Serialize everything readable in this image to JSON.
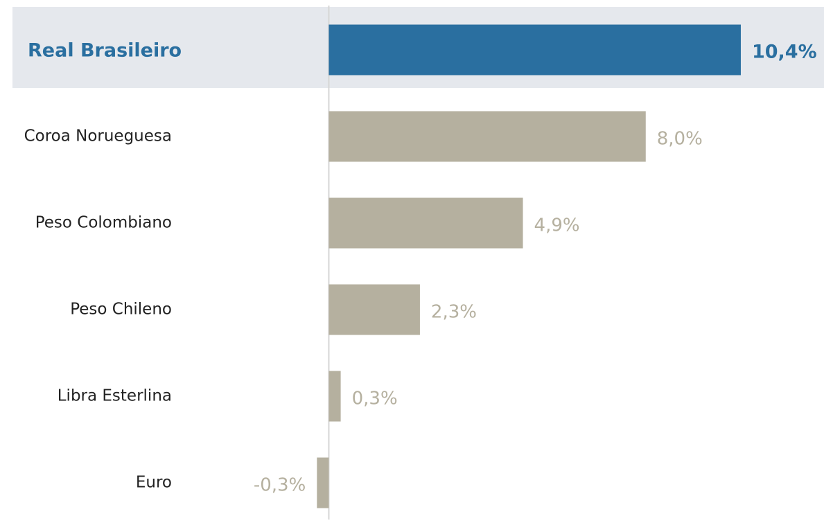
{
  "chart_data": {
    "type": "bar",
    "orientation": "horizontal",
    "categories": [
      "Real Brasileiro",
      "Coroa Norueguesa",
      "Peso Colombiano",
      "Peso Chileno",
      "Libra Esterlina",
      "Euro"
    ],
    "values": [
      10.4,
      8.0,
      4.9,
      2.3,
      0.3,
      -0.3
    ],
    "value_labels": [
      "10,4%",
      "8,0%",
      "4,9%",
      "2,3%",
      "0,3%",
      "-0,3%"
    ],
    "colors": [
      "#2a6fa0",
      "#b5b09f",
      "#b5b09f",
      "#b5b09f",
      "#b5b09f",
      "#b5b09f"
    ],
    "highlight": 0,
    "xlim": [
      -8.3,
      12.5
    ]
  }
}
